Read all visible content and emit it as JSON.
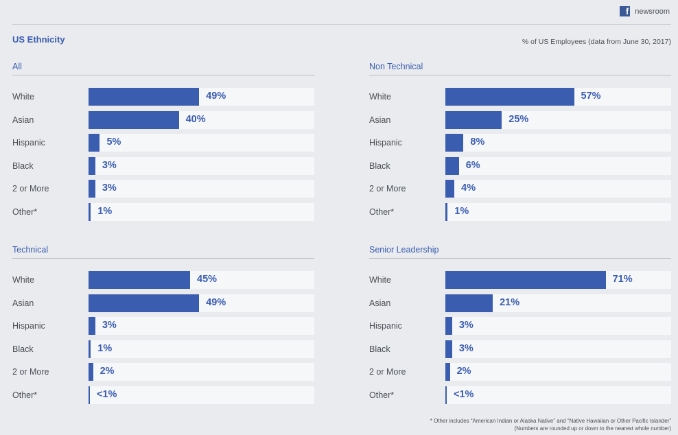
{
  "brand": {
    "label": "newsroom",
    "icon": "facebook-icon"
  },
  "title": "US Ethnicity",
  "subtitle": "% of US Employees (data from June 30, 2017)",
  "footnote": [
    "* Other includes “American Indian or Alaska Native” and “Native Hawaiian or Other Pacific Islander”",
    "(Numbers are rounded up or down to the nearest whole number)"
  ],
  "colors": {
    "bar": "#3b5db0",
    "track": "#f6f7f9",
    "background": "#e9ebee"
  },
  "chart_data": [
    {
      "type": "bar",
      "title": "All",
      "categories": [
        "White",
        "Asian",
        "Hispanic",
        "Black",
        "2 or More",
        "Other*"
      ],
      "values": [
        49,
        40,
        5,
        3,
        3,
        1
      ],
      "labels": [
        "49%",
        "40%",
        "5%",
        "3%",
        "3%",
        "1%"
      ],
      "xlim": [
        0,
        100
      ]
    },
    {
      "type": "bar",
      "title": "Non Technical",
      "categories": [
        "White",
        "Asian",
        "Hispanic",
        "Black",
        "2 or More",
        "Other*"
      ],
      "values": [
        57,
        25,
        8,
        6,
        4,
        1
      ],
      "labels": [
        "57%",
        "25%",
        "8%",
        "6%",
        "4%",
        "1%"
      ],
      "xlim": [
        0,
        100
      ]
    },
    {
      "type": "bar",
      "title": "Technical",
      "categories": [
        "White",
        "Asian",
        "Hispanic",
        "Black",
        "2 or More",
        "Other*"
      ],
      "values": [
        45,
        49,
        3,
        1,
        2,
        0.5
      ],
      "labels": [
        "45%",
        "49%",
        "3%",
        "1%",
        "2%",
        "<1%"
      ],
      "xlim": [
        0,
        100
      ]
    },
    {
      "type": "bar",
      "title": "Senior Leadership",
      "categories": [
        "White",
        "Asian",
        "Hispanic",
        "Black",
        "2 or More",
        "Other*"
      ],
      "values": [
        71,
        21,
        3,
        3,
        2,
        0.5
      ],
      "labels": [
        "71%",
        "21%",
        "3%",
        "3%",
        "2%",
        "<1%"
      ],
      "xlim": [
        0,
        100
      ]
    }
  ]
}
